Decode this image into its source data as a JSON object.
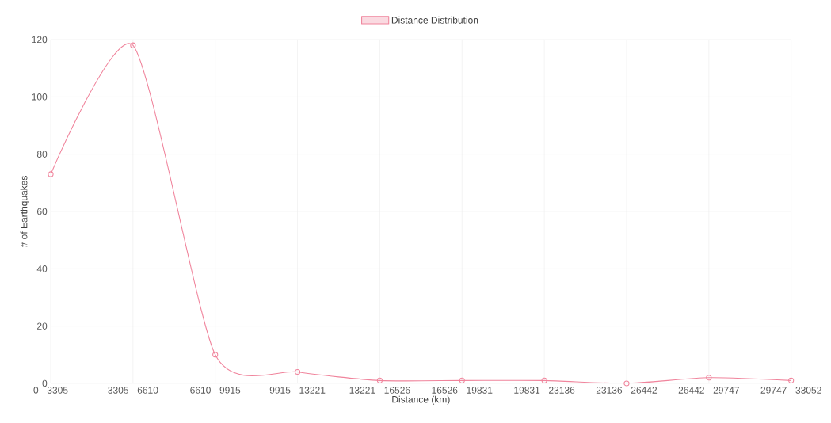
{
  "chart_data": {
    "type": "line",
    "xlabel": "Distance (km)",
    "ylabel": "# of Earthquakes",
    "categories": [
      "0 - 3305",
      "3305 - 6610",
      "6610 - 9915",
      "9915 - 13221",
      "13221 - 16526",
      "16526 - 19831",
      "19831 - 23136",
      "23136 - 26442",
      "26442 - 29747",
      "29747 - 33052"
    ],
    "series": [
      {
        "name": "Distance Distribution",
        "color": "#f0849c",
        "values": [
          73,
          118,
          10,
          4,
          1,
          1,
          1,
          0,
          2,
          1
        ]
      }
    ],
    "ylim": [
      0,
      120
    ],
    "yticks": [
      0,
      20,
      40,
      60,
      80,
      100,
      120
    ],
    "grid": true,
    "legend": "top",
    "marker": "circle",
    "line_style": "solid"
  }
}
